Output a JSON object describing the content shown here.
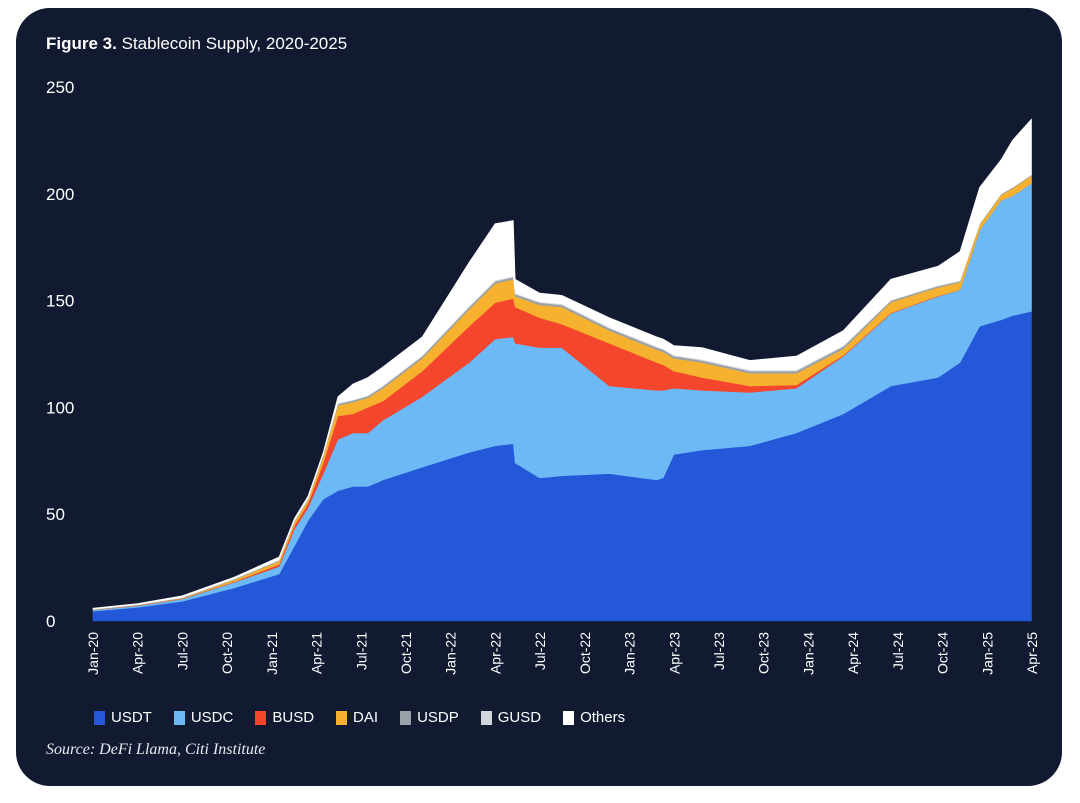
{
  "title_bold": "Figure 3.",
  "title_rest": "Stablecoin Supply, 2020-2025",
  "source": "Source: DeFi Llama, Citi Institute",
  "chart_data": {
    "type": "area",
    "stacked": true,
    "title": "Figure 3. Stablecoin Supply, 2020-2025",
    "xlabel": "",
    "ylabel": "",
    "ylim": [
      0,
      250
    ],
    "xlim": [
      "2020-01-01",
      "2025-04-01"
    ],
    "grid": false,
    "legend": "bottom",
    "yticks": [
      "0",
      "50",
      "100",
      "150",
      "200",
      "250"
    ],
    "ytick_values": [
      0,
      50,
      100,
      150,
      200,
      250
    ],
    "xticks": [
      "Jan-20",
      "Apr-20",
      "Jul-20",
      "Oct-20",
      "Jan-21",
      "Apr-21",
      "Jul-21",
      "Oct-21",
      "Jan-22",
      "Apr-22",
      "Jul-22",
      "Oct-22",
      "Jan-23",
      "Apr-23",
      "Jul-23",
      "Oct-23",
      "Jan-24",
      "Apr-24",
      "Jul-24",
      "Oct-24",
      "Jan-25",
      "Apr-25"
    ],
    "x": [
      "2020-01-01",
      "2020-04-01",
      "2020-07-01",
      "2020-10-15",
      "2021-01-15",
      "2021-02-15",
      "2021-03-15",
      "2021-04-15",
      "2021-05-15",
      "2021-06-15",
      "2021-07-15",
      "2021-08-15",
      "2021-11-03",
      "2022-02-07",
      "2022-04-01",
      "2022-05-08",
      "2022-05-12",
      "2022-07-01",
      "2022-08-15",
      "2022-11-20",
      "2023-02-25",
      "2023-03-10",
      "2023-04-01",
      "2023-05-28",
      "2023-09-03",
      "2023-12-07",
      "2024-03-12",
      "2024-06-17",
      "2024-09-21",
      "2024-11-05",
      "2024-12-15",
      "2025-01-28",
      "2025-02-20",
      "2025-03-31"
    ],
    "series": [
      {
        "name": "USDT",
        "color": "#2458d8",
        "values": [
          4.6,
          6.4,
          9.2,
          15.5,
          22,
          35,
          47,
          57,
          61,
          63,
          63,
          66,
          72,
          79,
          82,
          83,
          74,
          67,
          68,
          69,
          66,
          67,
          78,
          80,
          82,
          88,
          97,
          110,
          114,
          121,
          138,
          141,
          143,
          145
        ]
      },
      {
        "name": "USDC",
        "color": "#6cb9f6",
        "values": [
          0.5,
          0.7,
          1.1,
          2.6,
          3.5,
          8,
          6,
          12,
          24,
          25,
          25,
          28,
          33,
          42,
          50,
          50,
          56,
          61,
          60,
          41,
          42,
          41,
          31,
          28,
          25,
          21,
          27,
          34,
          38,
          34,
          45,
          56,
          56,
          60
        ]
      },
      {
        "name": "BUSD",
        "color": "#f4462c",
        "values": [
          0.1,
          0.2,
          0.2,
          0.3,
          1,
          1.5,
          2,
          5,
          11,
          9,
          12,
          9,
          12,
          17,
          17,
          18,
          17,
          14,
          11,
          20,
          13,
          12,
          8,
          6,
          3,
          1.5,
          0.5,
          0.3,
          0.2,
          0.1,
          0,
          0,
          0,
          0
        ]
      },
      {
        "name": "DAI",
        "color": "#f6b12f",
        "values": [
          0.1,
          0.1,
          0.2,
          0.9,
          1.5,
          1.8,
          1.5,
          3,
          5,
          5.5,
          4.5,
          6,
          6,
          8,
          9,
          9,
          5,
          6,
          8,
          6,
          6,
          6,
          6,
          7,
          6,
          5.5,
          3,
          5,
          4,
          3.5,
          2.5,
          2.5,
          3.5,
          3.5
        ]
      },
      {
        "name": "USDP",
        "color": "#9aa1a8",
        "values": [
          0.2,
          0.2,
          0.2,
          0.3,
          0.4,
          0.4,
          0.5,
          0.6,
          0.7,
          0.8,
          0.8,
          0.9,
          0.9,
          1,
          1,
          1,
          1,
          1,
          1,
          1,
          1,
          1,
          1,
          1,
          1,
          1,
          1,
          0.7,
          0.6,
          0.5,
          0.4,
          0.4,
          0.4,
          0.4
        ]
      },
      {
        "name": "GUSD",
        "color": "#d3d7dc",
        "values": [
          0.01,
          0.1,
          0.1,
          0.1,
          0.2,
          0.2,
          0.2,
          0.2,
          0.3,
          0.3,
          0.3,
          0.3,
          0.4,
          0.5,
          0.5,
          0.5,
          0.5,
          0.5,
          0.5,
          0.5,
          0.5,
          0.5,
          0.5,
          0.5,
          0.5,
          0.5,
          0.5,
          0.3,
          0.3,
          0.3,
          0.1,
          0.1,
          0.1,
          0.1
        ]
      },
      {
        "name": "Others",
        "color": "#ffffff",
        "values": [
          0.5,
          0.5,
          0.8,
          0.8,
          1.4,
          1.1,
          1.3,
          1.2,
          3,
          7.4,
          8.4,
          8.8,
          8.7,
          20.5,
          26.5,
          26,
          6.5,
          4,
          4,
          4.5,
          4.5,
          4.5,
          4.5,
          5.5,
          4.5,
          6.5,
          7,
          9.7,
          9,
          13.6,
          17,
          16,
          22,
          26
        ]
      }
    ]
  }
}
